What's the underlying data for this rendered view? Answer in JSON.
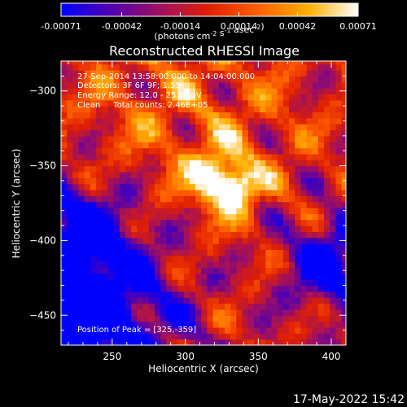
{
  "colorbar": {
    "ticks": [
      "-0.00071",
      "-0.00042",
      "-0.00014",
      "0.00014",
      "0.00042",
      "0.00071"
    ],
    "range": [
      -0.00071,
      0.00071
    ],
    "units": {
      "parts": [
        {
          "t": "(photons cm"
        },
        {
          "t": "-2",
          "sup": true
        },
        {
          "t": " s"
        },
        {
          "t": "-1",
          "sup": true
        },
        {
          "t": " asec"
        },
        {
          "t": "-2",
          "sup": true
        },
        {
          "t": ")"
        }
      ]
    },
    "colormap": [
      "#0000ff",
      "#5000b0",
      "#a01060",
      "#e02000",
      "#ff6000",
      "#ffb000",
      "#ffffff"
    ]
  },
  "title": "Reconstructed RHESSI Image",
  "annotation_lines": [
    "27-Sep-2014 13:58:00.000 to 14:04:00.000",
    "Detectors: 3F 6F 9F; 1.55",
    "Energy Range: 12.0 - 25.0 keV",
    "Clean     Total counts: 2.46E+05"
  ],
  "peak_text": "Position of Peak = [325,-359]",
  "xlabel": "Heliocentric X (arcsec)",
  "ylabel": "Heliocentric Y (arcsec)",
  "timestamp": "17-May-2022 15:42",
  "chart_data": {
    "type": "heatmap",
    "title": "Reconstructed RHESSI Image",
    "xlabel": "Heliocentric X (arcsec)",
    "ylabel": "Heliocentric Y (arcsec)",
    "xlim": [
      215,
      410
    ],
    "ylim": [
      -470,
      -280
    ],
    "xticks": [
      250,
      300,
      350,
      400
    ],
    "yticks": [
      -300,
      -350,
      -400,
      -450
    ],
    "peak": {
      "x": 325,
      "y": -359
    },
    "secondary_peak": {
      "x": 337,
      "y": -365
    },
    "cell_arcsec": 4,
    "colorbar_range": [
      -0.00071,
      0.00071
    ]
  }
}
